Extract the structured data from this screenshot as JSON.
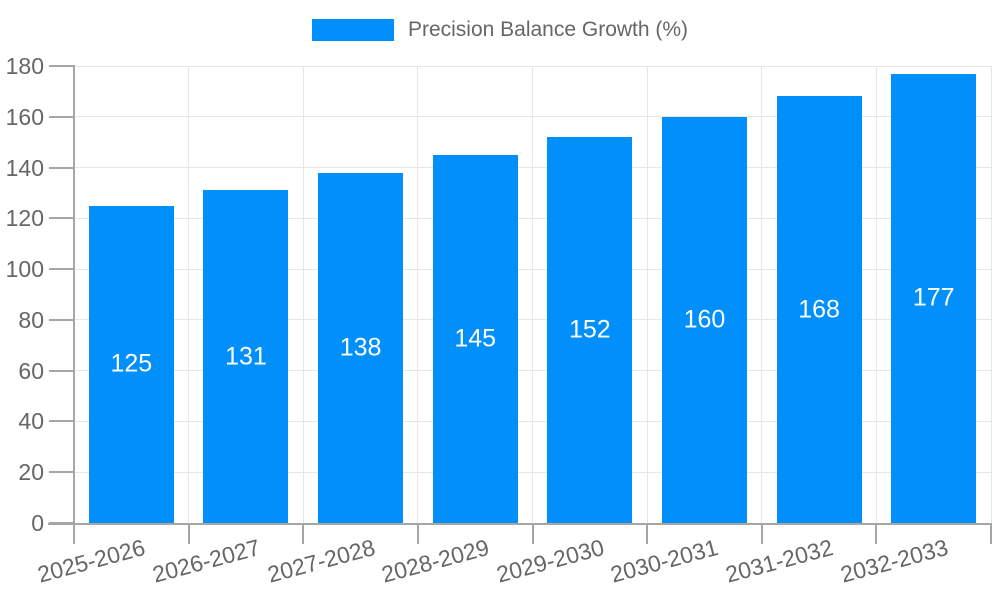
{
  "legend": {
    "label": "Precision Balance Growth (%)"
  },
  "colors": {
    "bar": "#008FFB",
    "grid": "#e7e7e7",
    "axis": "#a6a6a6",
    "axis_label": "#666666",
    "data_label": "#ffffff",
    "legend_text": "#666666",
    "background": "#ffffff"
  },
  "chart_data": {
    "type": "bar",
    "title": "Precision Balance Growth (%)",
    "categories": [
      "2025-2026",
      "2026-2027",
      "2027-2028",
      "2028-2029",
      "2029-2030",
      "2030-2031",
      "2031-2032",
      "2032-2033"
    ],
    "series": [
      {
        "name": "Precision Balance Growth (%)",
        "values": [
          125,
          131,
          138,
          145,
          152,
          160,
          168,
          177
        ]
      }
    ],
    "xlabel": "",
    "ylabel": "",
    "ylim": [
      0,
      180
    ],
    "ytick_step": 20,
    "grid": true,
    "legend_position": "top",
    "data_labels": "inside-center",
    "x_label_rotation_deg": -15
  }
}
